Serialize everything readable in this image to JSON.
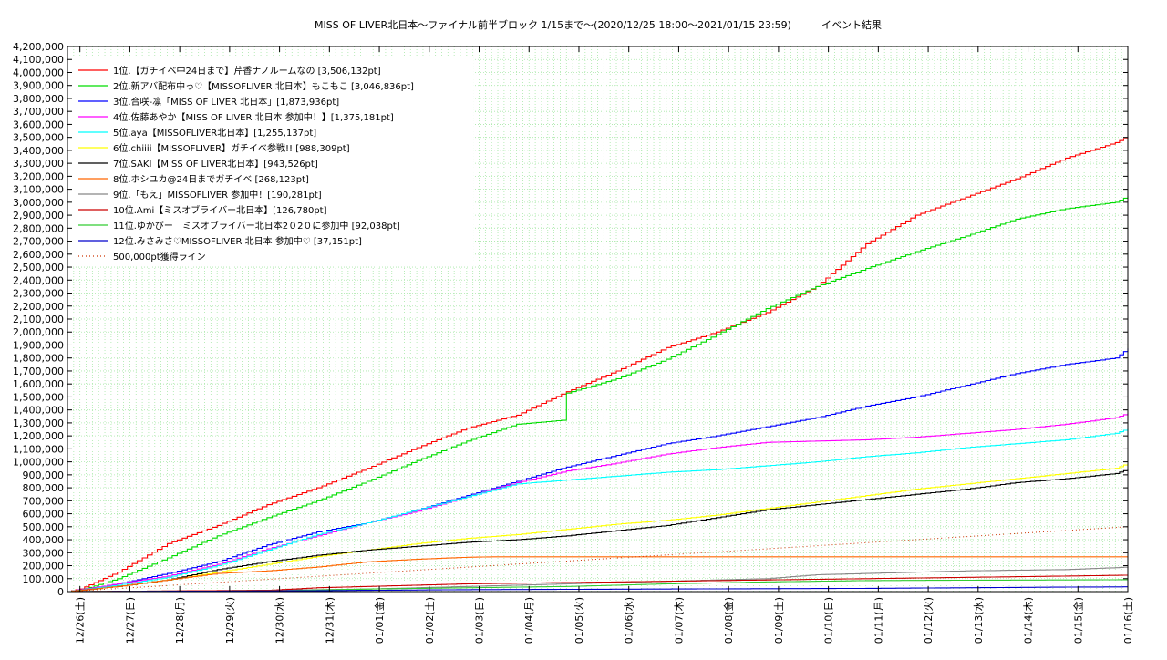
{
  "title": "MISS OF LIVER北日本〜ファイナル前半ブロック 1/15まで〜(2020/12/25 18:00〜2021/01/15 23:59)　　　イベント結果",
  "chart_data": {
    "type": "line",
    "title": "MISS OF LIVER北日本〜ファイナル前半ブロック 1/15まで〜(2020/12/25 18:00〜2021/01/15 23:59)　　　イベント結果",
    "xlabel": "",
    "ylabel": "",
    "x_range_days": [
      0,
      21.25
    ],
    "ylim": [
      0,
      4200000
    ],
    "y_tick_step": 100000,
    "y_ticks": [
      "0",
      "100,000",
      "200,000",
      "300,000",
      "400,000",
      "500,000",
      "600,000",
      "700,000",
      "800,000",
      "900,000",
      "1,000,000",
      "1,100,000",
      "1,200,000",
      "1,300,000",
      "1,400,000",
      "1,500,000",
      "1,600,000",
      "1,700,000",
      "1,800,000",
      "1,900,000",
      "2,000,000",
      "2,100,000",
      "2,200,000",
      "2,300,000",
      "2,400,000",
      "2,500,000",
      "2,600,000",
      "2,700,000",
      "2,800,000",
      "2,900,000",
      "3,000,000",
      "3,100,000",
      "3,200,000",
      "3,300,000",
      "3,400,000",
      "3,500,000",
      "3,600,000",
      "3,700,000",
      "3,800,000",
      "3,900,000",
      "4,000,000",
      "4,100,000",
      "4,200,000"
    ],
    "x_ticks": [
      "12/26(土)",
      "12/27(日)",
      "12/28(月)",
      "12/29(火)",
      "12/30(水)",
      "12/31(木)",
      "01/01(金)",
      "01/02(土)",
      "01/03(日)",
      "01/04(月)",
      "01/05(火)",
      "01/06(水)",
      "01/07(木)",
      "01/08(金)",
      "01/09(土)",
      "01/10(日)",
      "01/11(月)",
      "01/12(火)",
      "01/13(水)",
      "01/14(木)",
      "01/15(金)",
      "01/16(土)"
    ],
    "grid": true,
    "legend_position": "top-left",
    "series": [
      {
        "name": "1位.【ガチイベ中24日まで】芹香ナノルームなの [3,506,132pt]",
        "color": "#ff0000",
        "style": "step",
        "x": [
          0,
          0.25,
          1,
          2,
          3,
          4,
          5,
          6,
          7,
          8,
          9,
          10,
          11,
          12,
          13,
          14,
          15,
          16,
          17,
          18,
          19,
          20,
          21,
          21.25
        ],
        "y": [
          0,
          20000,
          150000,
          370000,
          510000,
          670000,
          800000,
          950000,
          1110000,
          1260000,
          1360000,
          1540000,
          1700000,
          1880000,
          2000000,
          2150000,
          2350000,
          2680000,
          2900000,
          3040000,
          3180000,
          3340000,
          3460000,
          3506132
        ]
      },
      {
        "name": "2位.新アバ配布中っ♡【MISSOFLIVER 北日本】もこもこ [3,046,836pt]",
        "color": "#00dd00",
        "style": "step",
        "x": [
          0,
          0.25,
          1,
          2,
          3,
          4,
          5,
          6,
          7,
          8,
          9,
          9.9,
          10,
          11,
          12,
          13,
          14,
          15,
          16,
          17,
          18,
          19,
          20,
          21,
          21.25
        ],
        "y": [
          0,
          10000,
          100000,
          260000,
          430000,
          570000,
          700000,
          850000,
          1010000,
          1160000,
          1290000,
          1320000,
          1530000,
          1640000,
          1790000,
          1980000,
          2180000,
          2350000,
          2490000,
          2620000,
          2740000,
          2870000,
          2950000,
          3000000,
          3046836
        ]
      },
      {
        "name": "3位.合咲-凛「MISS OF LIVER 北日本」[1,873,936pt]",
        "color": "#0000ff",
        "style": "step",
        "x": [
          0,
          1,
          2,
          3,
          4,
          5,
          6,
          7,
          8,
          9,
          10,
          11,
          12,
          13,
          14,
          15,
          16,
          17,
          18,
          19,
          20,
          21,
          21.25
        ],
        "y": [
          0,
          60000,
          140000,
          230000,
          360000,
          460000,
          530000,
          630000,
          740000,
          850000,
          960000,
          1050000,
          1140000,
          1200000,
          1270000,
          1340000,
          1430000,
          1500000,
          1590000,
          1680000,
          1750000,
          1800000,
          1873936
        ]
      },
      {
        "name": "4位.佐藤あやか【MISS OF LIVER 北日本 参加中！】[1,375,181pt]",
        "color": "#ff00ff",
        "style": "step",
        "x": [
          0,
          1,
          2,
          3,
          4,
          5,
          6,
          7,
          8,
          9,
          10,
          11,
          12,
          13,
          14,
          15,
          16,
          17,
          18,
          19,
          20,
          21,
          21.25
        ],
        "y": [
          0,
          60000,
          120000,
          210000,
          330000,
          430000,
          530000,
          620000,
          730000,
          840000,
          930000,
          990000,
          1060000,
          1110000,
          1150000,
          1160000,
          1170000,
          1190000,
          1220000,
          1250000,
          1290000,
          1340000,
          1375181
        ]
      },
      {
        "name": "5位.aya【MISSOFLIVER北日本】[1,255,137pt]",
        "color": "#00ffff",
        "style": "step",
        "x": [
          0,
          1,
          2,
          3,
          4,
          5,
          6,
          7,
          8,
          9,
          10,
          11,
          12,
          13,
          14,
          15,
          16,
          17,
          18,
          19,
          20,
          21,
          21.25
        ],
        "y": [
          0,
          50000,
          110000,
          200000,
          320000,
          440000,
          530000,
          630000,
          730000,
          830000,
          860000,
          890000,
          920000,
          940000,
          970000,
          1000000,
          1040000,
          1070000,
          1110000,
          1140000,
          1170000,
          1220000,
          1255137
        ]
      },
      {
        "name": "6位.chiiii【MISSOFLIVER】ガチイベ参戦!! [988,309pt]",
        "color": "#ffff00",
        "style": "step",
        "x": [
          0,
          1,
          2,
          3,
          4,
          5,
          6,
          7,
          8,
          9,
          10,
          11,
          12,
          13,
          14,
          15,
          16,
          17,
          18,
          19,
          20,
          21,
          21.25
        ],
        "y": [
          0,
          40000,
          90000,
          150000,
          210000,
          270000,
          320000,
          370000,
          410000,
          440000,
          480000,
          520000,
          550000,
          590000,
          640000,
          690000,
          740000,
          790000,
          830000,
          870000,
          910000,
          950000,
          988309
        ]
      },
      {
        "name": "7位.SAKI【MISS OF LIVER北日本】[943,526pt]",
        "color": "#000000",
        "style": "step",
        "x": [
          0,
          1,
          2,
          3,
          4,
          5,
          6,
          7,
          8,
          9,
          10,
          11,
          12,
          13,
          14,
          15,
          16,
          17,
          18,
          19,
          20,
          21,
          21.25
        ],
        "y": [
          0,
          40000,
          90000,
          170000,
          230000,
          280000,
          320000,
          350000,
          380000,
          400000,
          430000,
          470000,
          510000,
          570000,
          630000,
          670000,
          710000,
          750000,
          790000,
          840000,
          870000,
          910000,
          943526
        ]
      },
      {
        "name": "8位.ホシユカ@24日までガチイベ [268,123pt]",
        "color": "#ff6600",
        "style": "step",
        "x": [
          0,
          1,
          2,
          3,
          4,
          5,
          6,
          7,
          8,
          8.5,
          21.25
        ],
        "y": [
          0,
          40000,
          90000,
          140000,
          160000,
          190000,
          230000,
          250000,
          265000,
          268123,
          268123
        ]
      },
      {
        "name": "9位.「もえ」MISSOFLIVER 参加中！[190,281pt]",
        "color": "#888888",
        "style": "step",
        "x": [
          0,
          2,
          4,
          6,
          8,
          10,
          12,
          14,
          15,
          16,
          18,
          20,
          21,
          21.25
        ],
        "y": [
          0,
          5000,
          10000,
          20000,
          40000,
          60000,
          80000,
          100000,
          130000,
          140000,
          160000,
          170000,
          185000,
          190281
        ]
      },
      {
        "name": "10位.Ami【ミスオブライバー北日本】[126,780pt]",
        "color": "#cc0000",
        "style": "step",
        "x": [
          0,
          2,
          4,
          5,
          6,
          7,
          8,
          10,
          12,
          14,
          16,
          18,
          20,
          21.25
        ],
        "y": [
          0,
          5000,
          10000,
          30000,
          40000,
          50000,
          60000,
          70000,
          80000,
          90000,
          100000,
          110000,
          120000,
          126780
        ]
      },
      {
        "name": "11位.ゆかぴー　ミスオブライバー北日本2０2０に参加中 [92,038pt]",
        "color": "#33cc33",
        "style": "step",
        "x": [
          0,
          2,
          4,
          6,
          8,
          10,
          12,
          14,
          16,
          18,
          20,
          21.25
        ],
        "y": [
          0,
          2000,
          5000,
          20000,
          30000,
          40000,
          60000,
          75000,
          85000,
          88000,
          90000,
          92038
        ]
      },
      {
        "name": "12位.みさみさ♡MISSOFLIVER 北日本 参加中♡ [37,151pt]",
        "color": "#0000cc",
        "style": "step",
        "x": [
          0,
          4,
          8,
          12,
          16,
          20,
          21.25
        ],
        "y": [
          0,
          5000,
          15000,
          20000,
          25000,
          35000,
          37151
        ]
      },
      {
        "name": "500,000pt獲得ライン",
        "color": "#cc3300",
        "style": "dotted",
        "x": [
          0,
          21.25
        ],
        "y": [
          0,
          500000
        ]
      }
    ]
  }
}
